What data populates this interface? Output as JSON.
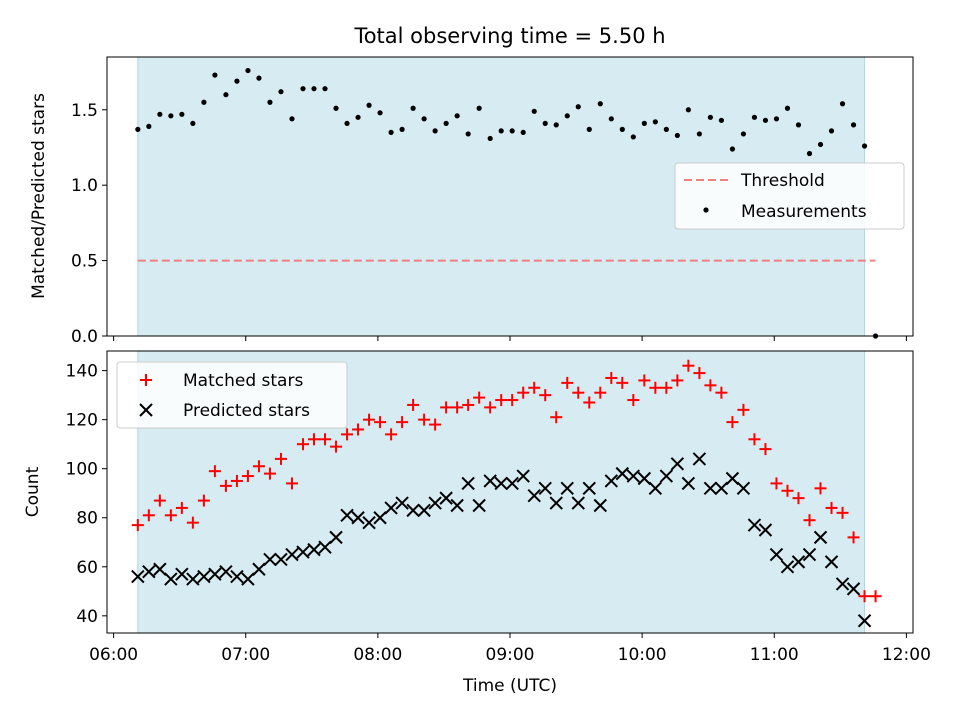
{
  "chart_data": [
    {
      "type": "scatter",
      "title": "Total observing time = 5.50 h",
      "ylabel": "Matched/Predicted stars",
      "xlim": [
        "05:57",
        "12:03"
      ],
      "ylim": [
        0,
        1.85
      ],
      "yticks": [
        "0.0",
        "0.5",
        "1.0",
        "1.5"
      ],
      "shaded_span": [
        "06:11",
        "11:41"
      ],
      "legend_position": "center-right",
      "threshold": {
        "name": "Threshold",
        "y": 0.5,
        "x_start": "06:11",
        "x_end": "11:46",
        "color": "#f08080",
        "style": "dashed"
      },
      "series": [
        {
          "name": "Measurements",
          "color": "#000000",
          "points": [
            [
              "06:11",
              1.37
            ],
            [
              "06:16",
              1.39
            ],
            [
              "06:21",
              1.47
            ],
            [
              "06:26",
              1.46
            ],
            [
              "06:31",
              1.47
            ],
            [
              "06:36",
              1.41
            ],
            [
              "06:41",
              1.55
            ],
            [
              "06:46",
              1.73
            ],
            [
              "06:51",
              1.6
            ],
            [
              "06:56",
              1.69
            ],
            [
              "07:01",
              1.76
            ],
            [
              "07:06",
              1.71
            ],
            [
              "07:11",
              1.55
            ],
            [
              "07:16",
              1.62
            ],
            [
              "07:21",
              1.44
            ],
            [
              "07:26",
              1.64
            ],
            [
              "07:31",
              1.64
            ],
            [
              "07:36",
              1.64
            ],
            [
              "07:41",
              1.51
            ],
            [
              "07:46",
              1.41
            ],
            [
              "07:51",
              1.45
            ],
            [
              "07:56",
              1.53
            ],
            [
              "08:01",
              1.48
            ],
            [
              "08:06",
              1.35
            ],
            [
              "08:11",
              1.37
            ],
            [
              "08:16",
              1.51
            ],
            [
              "08:21",
              1.44
            ],
            [
              "08:26",
              1.36
            ],
            [
              "08:31",
              1.41
            ],
            [
              "08:36",
              1.46
            ],
            [
              "08:41",
              1.34
            ],
            [
              "08:46",
              1.51
            ],
            [
              "08:51",
              1.31
            ],
            [
              "08:56",
              1.36
            ],
            [
              "09:01",
              1.36
            ],
            [
              "09:06",
              1.35
            ],
            [
              "09:11",
              1.49
            ],
            [
              "09:16",
              1.41
            ],
            [
              "09:21",
              1.4
            ],
            [
              "09:26",
              1.46
            ],
            [
              "09:31",
              1.52
            ],
            [
              "09:36",
              1.37
            ],
            [
              "09:41",
              1.54
            ],
            [
              "09:46",
              1.44
            ],
            [
              "09:51",
              1.37
            ],
            [
              "09:56",
              1.32
            ],
            [
              "10:01",
              1.41
            ],
            [
              "10:06",
              1.42
            ],
            [
              "10:11",
              1.37
            ],
            [
              "10:16",
              1.33
            ],
            [
              "10:21",
              1.5
            ],
            [
              "10:26",
              1.34
            ],
            [
              "10:31",
              1.45
            ],
            [
              "10:36",
              1.43
            ],
            [
              "10:41",
              1.24
            ],
            [
              "10:46",
              1.34
            ],
            [
              "10:51",
              1.45
            ],
            [
              "10:56",
              1.43
            ],
            [
              "11:01",
              1.44
            ],
            [
              "11:06",
              1.51
            ],
            [
              "11:11",
              1.4
            ],
            [
              "11:16",
              1.21
            ],
            [
              "11:21",
              1.27
            ],
            [
              "11:26",
              1.36
            ],
            [
              "11:31",
              1.54
            ],
            [
              "11:36",
              1.4
            ],
            [
              "11:41",
              1.26
            ],
            [
              "11:46",
              0.0
            ]
          ]
        }
      ]
    },
    {
      "type": "scatter",
      "xlabel": "Time (UTC)",
      "ylabel": "Count",
      "xlim": [
        "05:57",
        "12:03"
      ],
      "ylim": [
        33,
        148
      ],
      "yticks": [
        "40",
        "60",
        "80",
        "100",
        "120",
        "140"
      ],
      "xticks": [
        "06:00",
        "07:00",
        "08:00",
        "09:00",
        "10:00",
        "11:00",
        "12:00"
      ],
      "shaded_span": [
        "06:11",
        "11:41"
      ],
      "legend_position": "top-left",
      "series": [
        {
          "name": "Matched stars",
          "color": "#ff0000",
          "marker": "plus",
          "points": [
            [
              "06:11",
              77
            ],
            [
              "06:16",
              81
            ],
            [
              "06:21",
              87
            ],
            [
              "06:26",
              81
            ],
            [
              "06:31",
              84
            ],
            [
              "06:36",
              78
            ],
            [
              "06:41",
              87
            ],
            [
              "06:46",
              99
            ],
            [
              "06:51",
              93
            ],
            [
              "06:56",
              95
            ],
            [
              "07:01",
              97
            ],
            [
              "07:06",
              101
            ],
            [
              "07:11",
              98
            ],
            [
              "07:16",
              104
            ],
            [
              "07:21",
              94
            ],
            [
              "07:26",
              110
            ],
            [
              "07:31",
              112
            ],
            [
              "07:36",
              112
            ],
            [
              "07:41",
              109
            ],
            [
              "07:46",
              114
            ],
            [
              "07:51",
              116
            ],
            [
              "07:56",
              120
            ],
            [
              "08:01",
              119
            ],
            [
              "08:06",
              114
            ],
            [
              "08:11",
              119
            ],
            [
              "08:16",
              126
            ],
            [
              "08:21",
              120
            ],
            [
              "08:26",
              118
            ],
            [
              "08:31",
              125
            ],
            [
              "08:36",
              125
            ],
            [
              "08:41",
              126
            ],
            [
              "08:46",
              129
            ],
            [
              "08:51",
              125
            ],
            [
              "08:56",
              128
            ],
            [
              "09:01",
              128
            ],
            [
              "09:06",
              131
            ],
            [
              "09:11",
              133
            ],
            [
              "09:16",
              130
            ],
            [
              "09:21",
              121
            ],
            [
              "09:26",
              135
            ],
            [
              "09:31",
              131
            ],
            [
              "09:36",
              127
            ],
            [
              "09:41",
              131
            ],
            [
              "09:46",
              137
            ],
            [
              "09:51",
              135
            ],
            [
              "09:56",
              128
            ],
            [
              "10:01",
              136
            ],
            [
              "10:06",
              133
            ],
            [
              "10:11",
              133
            ],
            [
              "10:16",
              136
            ],
            [
              "10:21",
              142
            ],
            [
              "10:26",
              139
            ],
            [
              "10:31",
              134
            ],
            [
              "10:36",
              131
            ],
            [
              "10:41",
              119
            ],
            [
              "10:46",
              124
            ],
            [
              "10:51",
              112
            ],
            [
              "10:56",
              108
            ],
            [
              "11:01",
              94
            ],
            [
              "11:06",
              91
            ],
            [
              "11:11",
              88
            ],
            [
              "11:16",
              79
            ],
            [
              "11:21",
              92
            ],
            [
              "11:26",
              84
            ],
            [
              "11:31",
              82
            ],
            [
              "11:36",
              72
            ],
            [
              "11:41",
              48
            ],
            [
              "11:46",
              48
            ]
          ]
        },
        {
          "name": "Predicted stars",
          "color": "#000000",
          "marker": "x",
          "points": [
            [
              "06:11",
              56
            ],
            [
              "06:16",
              58
            ],
            [
              "06:21",
              59
            ],
            [
              "06:26",
              55
            ],
            [
              "06:31",
              57
            ],
            [
              "06:36",
              55
            ],
            [
              "06:41",
              56
            ],
            [
              "06:46",
              57
            ],
            [
              "06:51",
              58
            ],
            [
              "06:56",
              56
            ],
            [
              "07:01",
              55
            ],
            [
              "07:06",
              59
            ],
            [
              "07:11",
              63
            ],
            [
              "07:16",
              63
            ],
            [
              "07:21",
              65
            ],
            [
              "07:26",
              66
            ],
            [
              "07:31",
              67
            ],
            [
              "07:36",
              68
            ],
            [
              "07:41",
              72
            ],
            [
              "07:46",
              81
            ],
            [
              "07:51",
              80
            ],
            [
              "07:56",
              78
            ],
            [
              "08:01",
              80
            ],
            [
              "08:06",
              84
            ],
            [
              "08:11",
              86
            ],
            [
              "08:16",
              83
            ],
            [
              "08:21",
              83
            ],
            [
              "08:26",
              86
            ],
            [
              "08:31",
              88
            ],
            [
              "08:36",
              85
            ],
            [
              "08:41",
              94
            ],
            [
              "08:46",
              85
            ],
            [
              "08:51",
              95
            ],
            [
              "08:56",
              94
            ],
            [
              "09:01",
              94
            ],
            [
              "09:06",
              97
            ],
            [
              "09:11",
              89
            ],
            [
              "09:16",
              92
            ],
            [
              "09:21",
              86
            ],
            [
              "09:26",
              92
            ],
            [
              "09:31",
              86
            ],
            [
              "09:36",
              92
            ],
            [
              "09:41",
              85
            ],
            [
              "09:46",
              95
            ],
            [
              "09:51",
              98
            ],
            [
              "09:56",
              97
            ],
            [
              "10:01",
              96
            ],
            [
              "10:06",
              92
            ],
            [
              "10:11",
              97
            ],
            [
              "10:16",
              102
            ],
            [
              "10:21",
              94
            ],
            [
              "10:26",
              104
            ],
            [
              "10:31",
              92
            ],
            [
              "10:36",
              92
            ],
            [
              "10:41",
              96
            ],
            [
              "10:46",
              92
            ],
            [
              "10:51",
              77
            ],
            [
              "10:56",
              75
            ],
            [
              "11:01",
              65
            ],
            [
              "11:06",
              60
            ],
            [
              "11:11",
              62
            ],
            [
              "11:16",
              65
            ],
            [
              "11:21",
              72
            ],
            [
              "11:26",
              62
            ],
            [
              "11:31",
              53
            ],
            [
              "11:36",
              51
            ],
            [
              "11:41",
              38
            ]
          ]
        }
      ]
    }
  ]
}
